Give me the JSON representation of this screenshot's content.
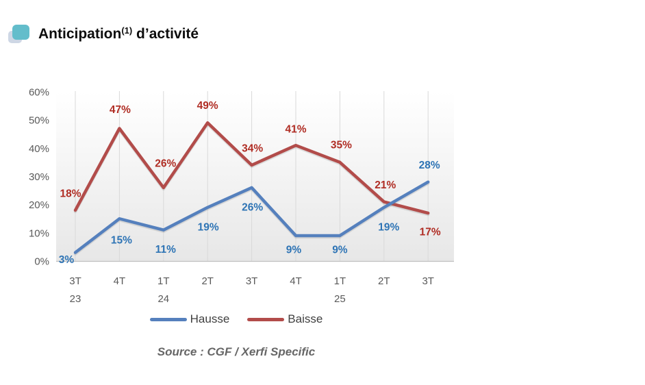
{
  "title": {
    "main": "Anticipation",
    "superscript": "(1)",
    "rest": " d’activité"
  },
  "chart_data": {
    "type": "line",
    "x_categories": [
      {
        "quarter": "3T",
        "year": "23"
      },
      {
        "quarter": "4T",
        "year": ""
      },
      {
        "quarter": "1T",
        "year": "24"
      },
      {
        "quarter": "2T",
        "year": ""
      },
      {
        "quarter": "3T",
        "year": ""
      },
      {
        "quarter": "4T",
        "year": ""
      },
      {
        "quarter": "1T",
        "year": "25"
      },
      {
        "quarter": "2T",
        "year": ""
      },
      {
        "quarter": "3T",
        "year": ""
      }
    ],
    "series": [
      {
        "name": "Hausse",
        "color": "#5580bd",
        "label_color": "#2e74b5",
        "values": [
          3,
          15,
          11,
          19,
          26,
          9,
          9,
          19,
          28
        ],
        "data_labels": [
          "3%",
          "15%",
          "11%",
          "19%",
          "26%",
          "9%",
          "9%",
          "19%",
          "28%"
        ],
        "label_offsets": [
          [
            -13,
            10
          ],
          [
            3,
            31
          ],
          [
            3,
            28
          ],
          [
            1,
            28
          ],
          [
            1,
            28
          ],
          [
            -3,
            20
          ],
          [
            0,
            20
          ],
          [
            7,
            28
          ],
          [
            2,
            -25
          ]
        ]
      },
      {
        "name": "Baisse",
        "color": "#b24c4a",
        "label_color": "#b02d24",
        "values": [
          18,
          47,
          26,
          49,
          34,
          41,
          35,
          21,
          17
        ],
        "data_labels": [
          "18%",
          "47%",
          "26%",
          "49%",
          "34%",
          "41%",
          "35%",
          "21%",
          "17%"
        ],
        "label_offsets": [
          [
            -7,
            -25
          ],
          [
            1,
            -28
          ],
          [
            3,
            -36
          ],
          [
            0,
            -26
          ],
          [
            1,
            -25
          ],
          [
            0,
            -24
          ],
          [
            2,
            -26
          ],
          [
            2,
            -25
          ],
          [
            3,
            27
          ]
        ]
      }
    ],
    "y_axis": {
      "tick_labels": [
        "0%",
        "10%",
        "20%",
        "30%",
        "40%",
        "50%",
        "60%"
      ],
      "min": 0,
      "max": 60,
      "step": 10
    },
    "grid": "vertical-only",
    "legend_position": "bottom",
    "title": "Anticipation(1) d’activité"
  },
  "source": "Source : CGF / Xerfi Specific",
  "colors": {
    "axis_text": "#595959",
    "gridline": "#d9d9d9",
    "axis_line": "#bfbfbf",
    "plot_bg_top": "#ffffff",
    "plot_bg_bottom": "#e7e7e7",
    "legend_text": "#3f3f3f",
    "icon_front": "#63bdcb",
    "icon_back": "#c9d3e2"
  }
}
